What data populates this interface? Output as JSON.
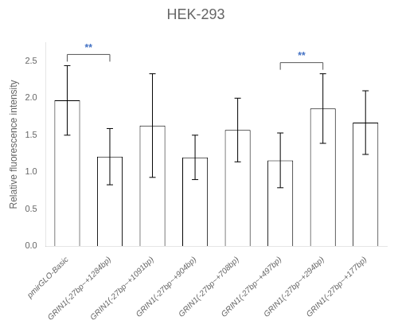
{
  "chart_data": {
    "type": "bar",
    "title": "HEK-293",
    "y_label": "Relative fluorescence intensity",
    "categories": [
      "pmirGLO-Basic",
      "GRIN1(-27bp~+1284bp)",
      "GRIN1(-27bp~+1091bp)",
      "GRIN1(-27bp~+904bp)",
      "GRIN1(-27bp~+708bp)",
      "GRIN1(-27bp~+497bp)",
      "GRIN1(-27bp~+294bp)",
      "GRIN1(-27bp~+177bp)"
    ],
    "values": [
      1.97,
      1.21,
      1.63,
      1.2,
      1.57,
      1.16,
      1.86,
      1.67
    ],
    "errors": [
      0.47,
      0.38,
      0.7,
      0.3,
      0.43,
      0.37,
      0.47,
      0.43
    ],
    "color": "#ffffff",
    "ylim": [
      0,
      2.75
    ],
    "yticks": [
      {
        "value": 0,
        "label": "0.0"
      },
      0.5,
      {
        "value": 1.0,
        "label": "1.0"
      },
      1.5,
      {
        "value": 2.0,
        "label": "2.0"
      },
      2.5
    ],
    "grid": false,
    "annotations": [
      {
        "text": "**",
        "from": "pmirGLO-Basic",
        "to": "GRIN1(-27bp~+1284bp)",
        "color": "#4472c4"
      },
      {
        "text": "**",
        "from": "GRIN1(-27bp~+497bp)",
        "to": "GRIN1(-27bp~+294bp)",
        "color": "#4472c4"
      }
    ]
  }
}
